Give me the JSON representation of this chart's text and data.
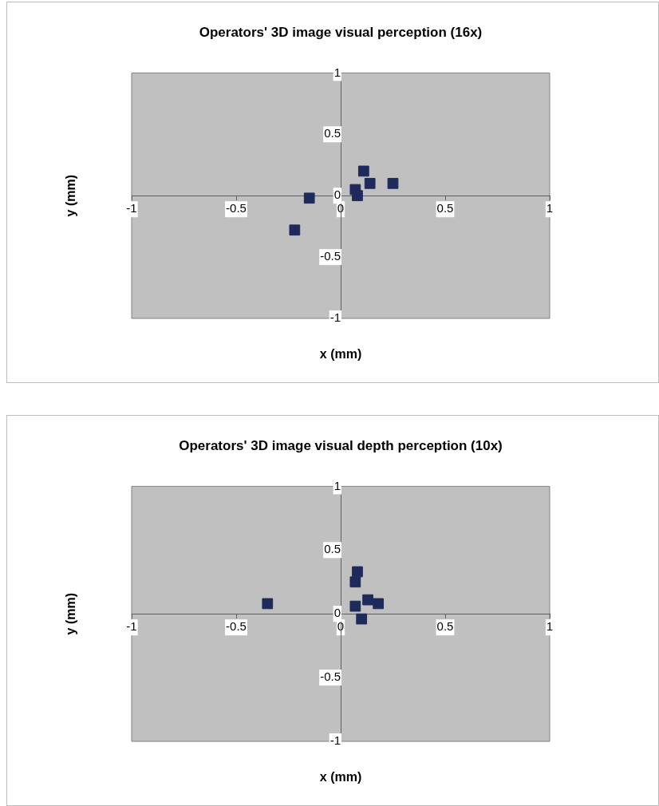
{
  "chart_data": [
    {
      "type": "scatter",
      "title": "Operators' 3D image visual perception (16x)",
      "xlabel": "x (mm)",
      "ylabel": "y (mm)",
      "x": [
        0.11,
        0.14,
        0.25,
        0.07,
        0.08,
        -0.15,
        -0.22
      ],
      "values": [
        0.2,
        0.1,
        0.1,
        0.05,
        0.0,
        -0.02,
        -0.28
      ],
      "color": "#1f2a5c",
      "marker": "square",
      "xlim": [
        -1,
        1
      ],
      "ylim": [
        -1,
        1
      ],
      "xticks": [
        -1,
        -0.5,
        0,
        0.5,
        1
      ],
      "yticks": [
        -1,
        -0.5,
        0,
        0.5,
        1
      ],
      "grid": false,
      "legend": false
    },
    {
      "type": "scatter",
      "title": "Operators' 3D image visual depth perception (10x)",
      "xlabel": "x (mm)",
      "ylabel": "y (mm)",
      "x": [
        0.08,
        0.07,
        0.13,
        0.18,
        0.07,
        0.1,
        -0.35
      ],
      "values": [
        0.33,
        0.25,
        0.11,
        0.08,
        0.06,
        -0.04,
        0.08
      ],
      "color": "#1f2a5c",
      "marker": "square",
      "xlim": [
        -1,
        1
      ],
      "ylim": [
        -1,
        1
      ],
      "xticks": [
        -1,
        -0.5,
        0,
        0.5,
        1
      ],
      "yticks": [
        -1,
        -0.5,
        0,
        0.5,
        1
      ],
      "grid": false,
      "legend": false
    }
  ]
}
